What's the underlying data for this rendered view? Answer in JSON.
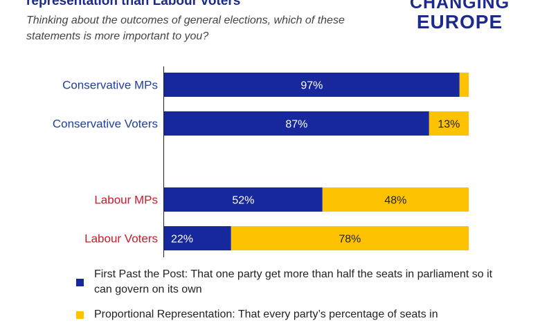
{
  "title": "representation than Labour voters",
  "subtitle": "Thinking about the outcomes of general elections, which of these statements is more important to you?",
  "logo": {
    "line1": "CHANGING",
    "line2": "EUROPE"
  },
  "colors": {
    "fptp": "#16289b",
    "pr": "#fdc300",
    "conservative_label": "#1f3fa0",
    "labour_label": "#d3172a"
  },
  "chart_data": {
    "type": "bar",
    "orientation": "horizontal",
    "stacked": true,
    "categories": [
      "Conservative MPs",
      "Conservative Voters",
      "Labour MPs",
      "Labour Voters"
    ],
    "series": [
      {
        "name": "First Past the Post: That one party get more than half the seats in parliament so it can govern on its own",
        "values": [
          97,
          87,
          52,
          22
        ]
      },
      {
        "name": "Proportional Representation: That every party’s percentage of seats in",
        "values": [
          3,
          13,
          48,
          78
        ]
      }
    ],
    "data_labels": [
      [
        "97%",
        ""
      ],
      [
        "87%",
        "13%"
      ],
      [
        "52%",
        "48%"
      ],
      [
        "22%",
        "78%"
      ]
    ],
    "xlim": [
      0,
      100
    ],
    "grid": false,
    "legend_position": "bottom"
  },
  "legend": [
    {
      "label": "First Past the Post: That one party get more than half the seats in parliament so it can govern on its own"
    },
    {
      "label": "Proportional Representation: That every party’s percentage of seats in"
    }
  ]
}
